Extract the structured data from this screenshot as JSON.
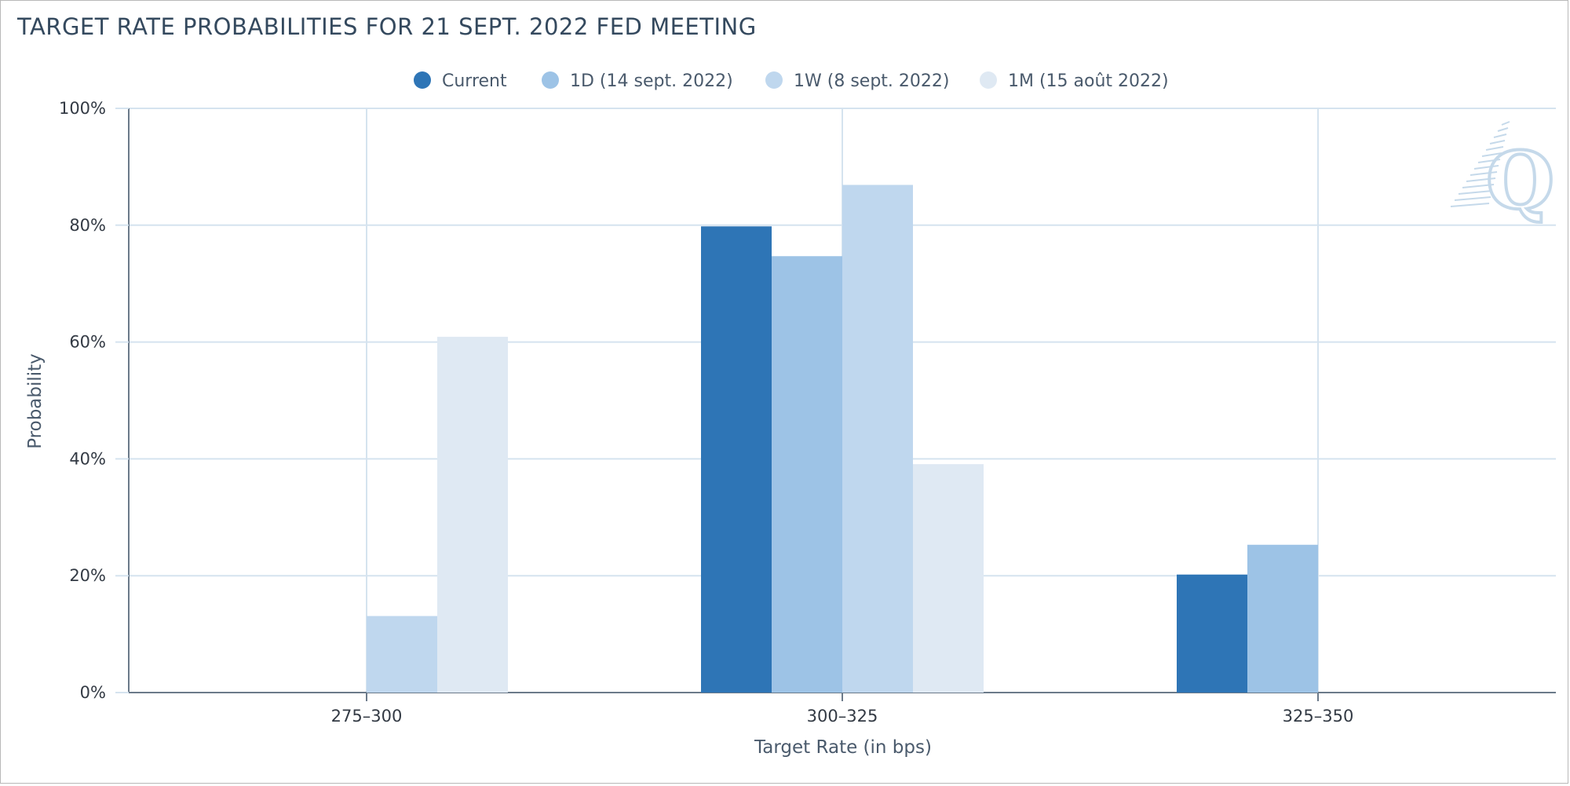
{
  "chart_data": {
    "type": "bar",
    "title": "TARGET RATE PROBABILITIES FOR 21 SEPT. 2022 FED MEETING",
    "xlabel": "Target Rate (in bps)",
    "ylabel": "Probability",
    "categories": [
      "275-300",
      "300-325",
      "325-350"
    ],
    "ylim": [
      0,
      100
    ],
    "yticks": [
      0,
      20,
      40,
      60,
      80,
      100
    ],
    "ytick_suffix": "%",
    "ytick_labels": [
      "0%",
      "20%",
      "40%",
      "60%",
      "80%",
      "100%"
    ],
    "grid": true,
    "legend_position": "top-center",
    "series": [
      {
        "name": "Current",
        "color": "#2e75b6",
        "values": [
          0,
          79.8,
          20.2
        ]
      },
      {
        "name": "1D (14 sept. 2022)",
        "color": "#9dc3e6",
        "values": [
          0,
          74.7,
          25.3
        ]
      },
      {
        "name": "1W (8 sept. 2022)",
        "color": "#bfd7ee",
        "values": [
          13.1,
          86.9,
          0
        ]
      },
      {
        "name": "1M (15 août 2022)",
        "color": "#dfe9f3",
        "values": [
          60.9,
          39.1,
          0
        ]
      }
    ]
  },
  "watermark": {
    "icon": "q-logo-icon",
    "letter": "Q",
    "color": "#c5d9ea"
  }
}
